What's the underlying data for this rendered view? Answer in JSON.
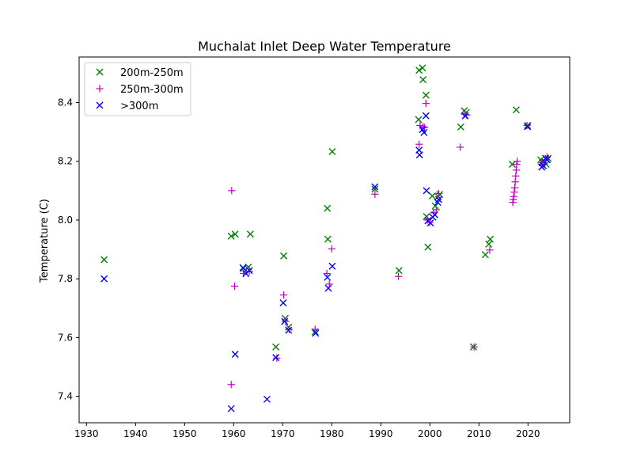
{
  "chart_data": {
    "type": "scatter",
    "title": "Muchalat Inlet Deep Water Temperature",
    "xlabel": "",
    "ylabel": "Temperature (C)",
    "xlim": [
      1928.5,
      2028.5
    ],
    "ylim": [
      7.31,
      8.555
    ],
    "xticks": [
      1930,
      1940,
      1950,
      1960,
      1970,
      1980,
      1990,
      2000,
      2010,
      2020
    ],
    "yticks": [
      7.4,
      7.6,
      7.8,
      8.0,
      8.2,
      8.4
    ],
    "ytick_labels": [
      "7.4",
      "7.6",
      "7.8",
      "8.0",
      "8.2",
      "8.4"
    ],
    "grid": false,
    "legend_position": "top-left",
    "series": [
      {
        "name": "200m-250m",
        "marker": "x",
        "color": "#008000",
        "points": [
          [
            1933.6,
            7.865
          ],
          [
            1959.5,
            7.945
          ],
          [
            1960.3,
            7.952
          ],
          [
            1962.0,
            7.835
          ],
          [
            1963.0,
            7.84
          ],
          [
            1963.4,
            7.952
          ],
          [
            1968.6,
            7.568
          ],
          [
            1970.2,
            7.878
          ],
          [
            1970.5,
            7.665
          ],
          [
            1971.2,
            7.635
          ],
          [
            1976.6,
            7.62
          ],
          [
            1979.1,
            8.04
          ],
          [
            1979.2,
            7.935
          ],
          [
            1980.1,
            8.233
          ],
          [
            1988.8,
            8.105
          ],
          [
            1993.7,
            7.828
          ],
          [
            1997.7,
            8.342
          ],
          [
            1997.8,
            8.51
          ],
          [
            1998.5,
            8.518
          ],
          [
            1998.6,
            8.478
          ],
          [
            1999.2,
            8.425
          ],
          [
            1999.3,
            8.012
          ],
          [
            1999.6,
            7.908
          ],
          [
            2000.5,
            8.082
          ],
          [
            2001.1,
            8.048
          ],
          [
            2001.7,
            8.08
          ],
          [
            2002.0,
            8.087
          ],
          [
            2006.3,
            8.317
          ],
          [
            2007.0,
            8.372
          ],
          [
            2007.4,
            8.366
          ],
          [
            2008.9,
            7.568
          ],
          [
            2011.3,
            7.882
          ],
          [
            2012.0,
            7.918
          ],
          [
            2012.3,
            7.935
          ],
          [
            2016.8,
            8.19
          ],
          [
            2017.6,
            8.375
          ],
          [
            2019.9,
            8.322
          ],
          [
            2022.6,
            8.205
          ],
          [
            2022.9,
            8.195
          ],
          [
            2023.3,
            8.2
          ],
          [
            2023.7,
            8.19
          ],
          [
            2024.1,
            8.21
          ]
        ]
      },
      {
        "name": "250m-300m",
        "marker": "+",
        "color": "#bf00bf",
        "points": [
          [
            1959.5,
            7.44
          ],
          [
            1959.6,
            8.1
          ],
          [
            1960.2,
            7.775
          ],
          [
            1962.0,
            7.818
          ],
          [
            1962.6,
            7.825
          ],
          [
            1963.2,
            7.825
          ],
          [
            1968.8,
            7.53
          ],
          [
            1970.2,
            7.745
          ],
          [
            1970.6,
            7.655
          ],
          [
            1971.3,
            7.628
          ],
          [
            1976.6,
            7.628
          ],
          [
            1979.0,
            7.818
          ],
          [
            1979.5,
            7.782
          ],
          [
            1980.0,
            7.902
          ],
          [
            1988.8,
            8.088
          ],
          [
            1993.6,
            7.808
          ],
          [
            1997.8,
            8.258
          ],
          [
            1998.0,
            8.322
          ],
          [
            1998.6,
            8.318
          ],
          [
            1998.9,
            8.315
          ],
          [
            1999.2,
            8.397
          ],
          [
            1999.5,
            8.0
          ],
          [
            2000.0,
            7.992
          ],
          [
            2000.8,
            8.025
          ],
          [
            2001.3,
            8.035
          ],
          [
            2001.8,
            8.09
          ],
          [
            2006.2,
            8.248
          ],
          [
            2007.1,
            8.36
          ],
          [
            2007.5,
            8.358
          ],
          [
            2009.0,
            7.568
          ],
          [
            2012.2,
            7.898
          ],
          [
            2016.9,
            8.06
          ],
          [
            2017.0,
            8.07
          ],
          [
            2017.1,
            8.08
          ],
          [
            2017.2,
            8.095
          ],
          [
            2017.3,
            8.11
          ],
          [
            2017.4,
            8.13
          ],
          [
            2017.5,
            8.15
          ],
          [
            2017.6,
            8.17
          ],
          [
            2017.7,
            8.19
          ],
          [
            2017.8,
            8.2
          ],
          [
            2019.8,
            8.322
          ],
          [
            2022.7,
            8.19
          ],
          [
            2023.0,
            8.195
          ],
          [
            2023.5,
            8.205
          ],
          [
            2023.9,
            8.215
          ]
        ]
      },
      {
        "name": ">300m",
        "marker": "x",
        "color": "#0000ff",
        "points": [
          [
            1933.6,
            7.8
          ],
          [
            1959.5,
            7.358
          ],
          [
            1960.3,
            7.543
          ],
          [
            1961.9,
            7.838
          ],
          [
            1962.5,
            7.818
          ],
          [
            1963.2,
            7.828
          ],
          [
            1966.8,
            7.39
          ],
          [
            1968.6,
            7.532
          ],
          [
            1970.1,
            7.718
          ],
          [
            1970.4,
            7.655
          ],
          [
            1971.2,
            7.625
          ],
          [
            1976.7,
            7.615
          ],
          [
            1979.1,
            7.805
          ],
          [
            1979.3,
            7.768
          ],
          [
            1980.1,
            7.843
          ],
          [
            1988.8,
            8.113
          ],
          [
            1997.8,
            8.238
          ],
          [
            1997.9,
            8.222
          ],
          [
            1998.5,
            8.308
          ],
          [
            1998.8,
            8.298
          ],
          [
            1999.2,
            8.355
          ],
          [
            1999.3,
            8.1
          ],
          [
            1999.6,
            7.998
          ],
          [
            2000.1,
            7.99
          ],
          [
            2000.6,
            8.01
          ],
          [
            2001.0,
            8.018
          ],
          [
            2001.6,
            8.06
          ],
          [
            2001.8,
            8.07
          ],
          [
            2007.2,
            8.355
          ],
          [
            2019.9,
            8.318
          ],
          [
            2022.8,
            8.18
          ],
          [
            2023.1,
            8.185
          ],
          [
            2023.6,
            8.21
          ],
          [
            2023.9,
            8.205
          ]
        ]
      }
    ]
  }
}
